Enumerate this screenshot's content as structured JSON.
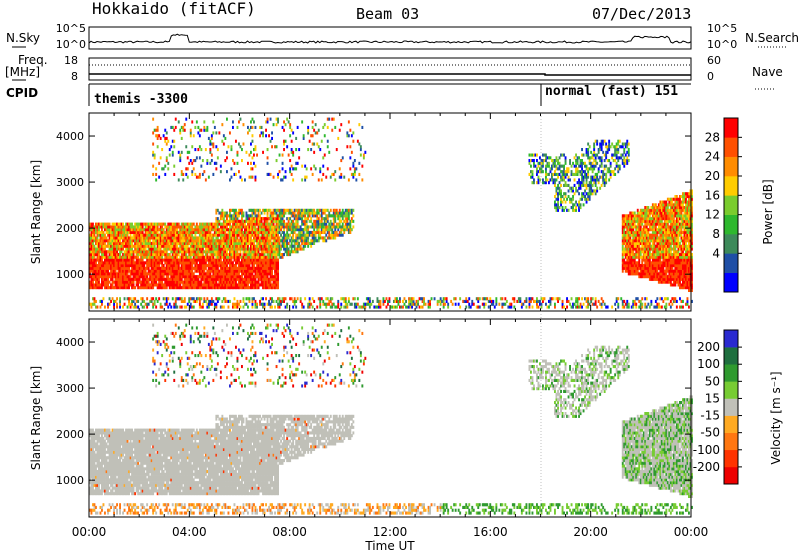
{
  "header": {
    "station": "Hokkaido (fitACF)",
    "beam": "Beam 03",
    "date": "07/Dec/2013"
  },
  "top_panels": {
    "nsky_label": "N.Sky",
    "nsearch_label": "N.Search",
    "noise_ticks_left": [
      "10^5",
      "10^0"
    ],
    "noise_ticks_right": [
      "10^5",
      "10^0"
    ],
    "freq_label": "Freq.",
    "freq_unit": "[MHz]",
    "freq_ticks": [
      "18",
      "8"
    ],
    "nave_label": "Nave",
    "nave_ticks": [
      "60",
      "0"
    ],
    "cpid_label": "CPID",
    "cpid_entries": [
      {
        "text": "themis -3300",
        "start_hour": 0
      },
      {
        "text": "normal (fast) 151",
        "start_hour": 18
      }
    ]
  },
  "chart_data": [
    {
      "type": "heatmap",
      "name": "power",
      "ylabel": "Slant Range [km]",
      "xlabel": "Time UT",
      "xlim_hours": [
        0,
        24
      ],
      "ylim": [
        200,
        4500
      ],
      "xtick_labels": [
        "00:00",
        "04:00",
        "08:00",
        "12:00",
        "16:00",
        "20:00",
        "00:00"
      ],
      "ytick_labels": [
        "1000",
        "2000",
        "3000",
        "4000"
      ],
      "colorbar": {
        "label": "Power [dB]",
        "ticks": [
          "4",
          "8",
          "12",
          "16",
          "20",
          "24",
          "28"
        ],
        "range": [
          0,
          32
        ],
        "colors": [
          "#0000ff",
          "#1f4fa6",
          "#3d8a5a",
          "#2eb82e",
          "#7acc2e",
          "#ffcc00",
          "#ff8c00",
          "#ff5000",
          "#ff0000"
        ]
      }
    },
    {
      "type": "heatmap",
      "name": "velocity",
      "ylabel": "Slant Range [km]",
      "xlabel": "Time UT",
      "xlim_hours": [
        0,
        24
      ],
      "ylim": [
        200,
        4500
      ],
      "xtick_labels": [
        "00:00",
        "04:00",
        "08:00",
        "12:00",
        "16:00",
        "20:00",
        "00:00"
      ],
      "ytick_labels": [
        "1000",
        "2000",
        "3000",
        "4000"
      ],
      "colorbar": {
        "label": "Velocity [m s⁻¹]",
        "ticks": [
          "200",
          "100",
          "50",
          "15",
          "-15",
          "-50",
          "-100",
          "-200"
        ],
        "colors": [
          "#2a2ad0",
          "#1f6f3f",
          "#2f9a2f",
          "#77cc33",
          "#c0c0b8",
          "#ffaa22",
          "#ff7711",
          "#ff3300",
          "#ee0000"
        ]
      }
    }
  ],
  "colors": {
    "ground_scatter": "#c0c0b8",
    "frame": "#000000"
  }
}
